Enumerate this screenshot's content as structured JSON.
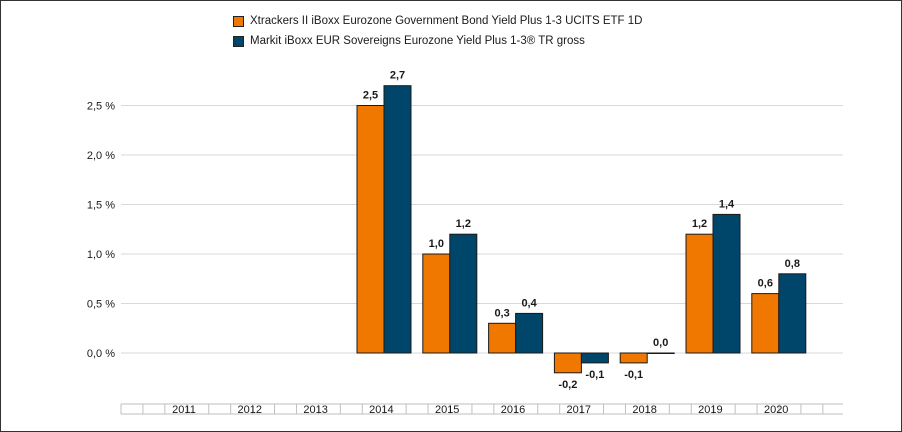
{
  "legend": [
    {
      "label": "Xtrackers II iBoxx Eurozone Government Bond Yield Plus 1-3 UCITS ETF  1D",
      "color": "#f07800"
    },
    {
      "label": "Markit iBoxx EUR Sovereigns Eurozone Yield Plus 1-3® TR gross",
      "color": "#00456a"
    }
  ],
  "chart_data": {
    "type": "bar",
    "categories": [
      "2011",
      "2012",
      "2013",
      "2014",
      "2015",
      "2016",
      "2017",
      "2018",
      "2019",
      "2020"
    ],
    "series": [
      {
        "name": "Xtrackers II iBoxx Eurozone Government Bond Yield Plus 1-3 UCITS ETF  1D",
        "color": "#f07800",
        "values": [
          null,
          null,
          null,
          2.5,
          1.0,
          0.3,
          -0.2,
          -0.1,
          1.2,
          0.6
        ],
        "labels": [
          "",
          "",
          "",
          "2,5",
          "1,0",
          "0,3",
          "-0,2",
          "-0,1",
          "1,2",
          "0,6"
        ]
      },
      {
        "name": "Markit iBoxx EUR Sovereigns Eurozone Yield Plus 1-3® TR gross",
        "color": "#00456a",
        "values": [
          null,
          null,
          null,
          2.7,
          1.2,
          0.4,
          -0.1,
          0.0,
          1.4,
          0.8
        ],
        "labels": [
          "",
          "",
          "",
          "2,7",
          "1,2",
          "0,4",
          "-0,1",
          "0,0",
          "1,4",
          "0,8"
        ]
      }
    ],
    "yticks": [
      0.0,
      0.5,
      1.0,
      1.5,
      2.0,
      2.5
    ],
    "ytick_labels": [
      "0,0 %",
      "0,5 %",
      "1,0 %",
      "1,5 %",
      "2,0 %",
      "2,5 %"
    ],
    "ylim": [
      -0.5,
      3.0
    ],
    "grid": true,
    "legend_position": "top"
  }
}
